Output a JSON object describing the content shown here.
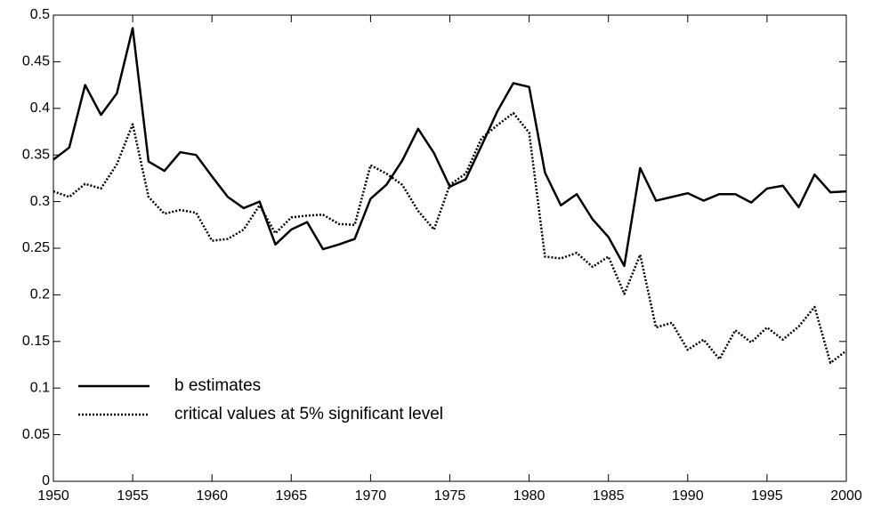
{
  "chart_data": {
    "type": "line",
    "x": [
      1950,
      1951,
      1952,
      1953,
      1954,
      1955,
      1956,
      1957,
      1958,
      1959,
      1960,
      1961,
      1962,
      1963,
      1964,
      1965,
      1966,
      1967,
      1968,
      1969,
      1970,
      1971,
      1972,
      1973,
      1974,
      1975,
      1976,
      1977,
      1978,
      1979,
      1980,
      1981,
      1982,
      1983,
      1984,
      1985,
      1986,
      1987,
      1988,
      1989,
      1990,
      1991,
      1992,
      1993,
      1994,
      1995,
      1996,
      1997,
      1998,
      1999,
      2000
    ],
    "series": [
      {
        "name": "b estimates",
        "color": "#000000",
        "dash": "solid",
        "values": [
          0.345,
          0.358,
          0.425,
          0.393,
          0.416,
          0.486,
          0.343,
          0.333,
          0.353,
          0.35,
          0.327,
          0.305,
          0.293,
          0.3,
          0.254,
          0.27,
          0.278,
          0.249,
          0.254,
          0.26,
          0.303,
          0.318,
          0.344,
          0.378,
          0.352,
          0.316,
          0.324,
          0.36,
          0.397,
          0.427,
          0.423,
          0.331,
          0.296,
          0.308,
          0.281,
          0.262,
          0.231,
          0.336,
          0.301,
          0.305,
          0.309,
          0.301,
          0.308,
          0.308,
          0.299,
          0.314,
          0.317,
          0.294,
          0.329,
          0.31,
          0.311
        ]
      },
      {
        "name": "critical values at 5% significant level",
        "color": "#000000",
        "dash": "dotted",
        "values": [
          0.311,
          0.305,
          0.319,
          0.314,
          0.34,
          0.383,
          0.305,
          0.287,
          0.291,
          0.288,
          0.258,
          0.26,
          0.27,
          0.296,
          0.266,
          0.283,
          0.285,
          0.286,
          0.276,
          0.275,
          0.339,
          0.33,
          0.318,
          0.29,
          0.27,
          0.318,
          0.33,
          0.368,
          0.382,
          0.395,
          0.374,
          0.241,
          0.239,
          0.245,
          0.23,
          0.241,
          0.201,
          0.243,
          0.165,
          0.17,
          0.141,
          0.152,
          0.131,
          0.162,
          0.149,
          0.165,
          0.152,
          0.166,
          0.187,
          0.127,
          0.14
        ]
      }
    ],
    "xlim": [
      1950,
      2000
    ],
    "xticks": [
      1950,
      1955,
      1960,
      1965,
      1970,
      1975,
      1980,
      1985,
      1990,
      1995,
      2000
    ],
    "ylim": [
      0,
      0.5
    ],
    "yticks": [
      0,
      0.05,
      0.1,
      0.15,
      0.2,
      0.25,
      0.3,
      0.35,
      0.4,
      0.45,
      0.5
    ],
    "grid": false,
    "legend": "lower left"
  }
}
